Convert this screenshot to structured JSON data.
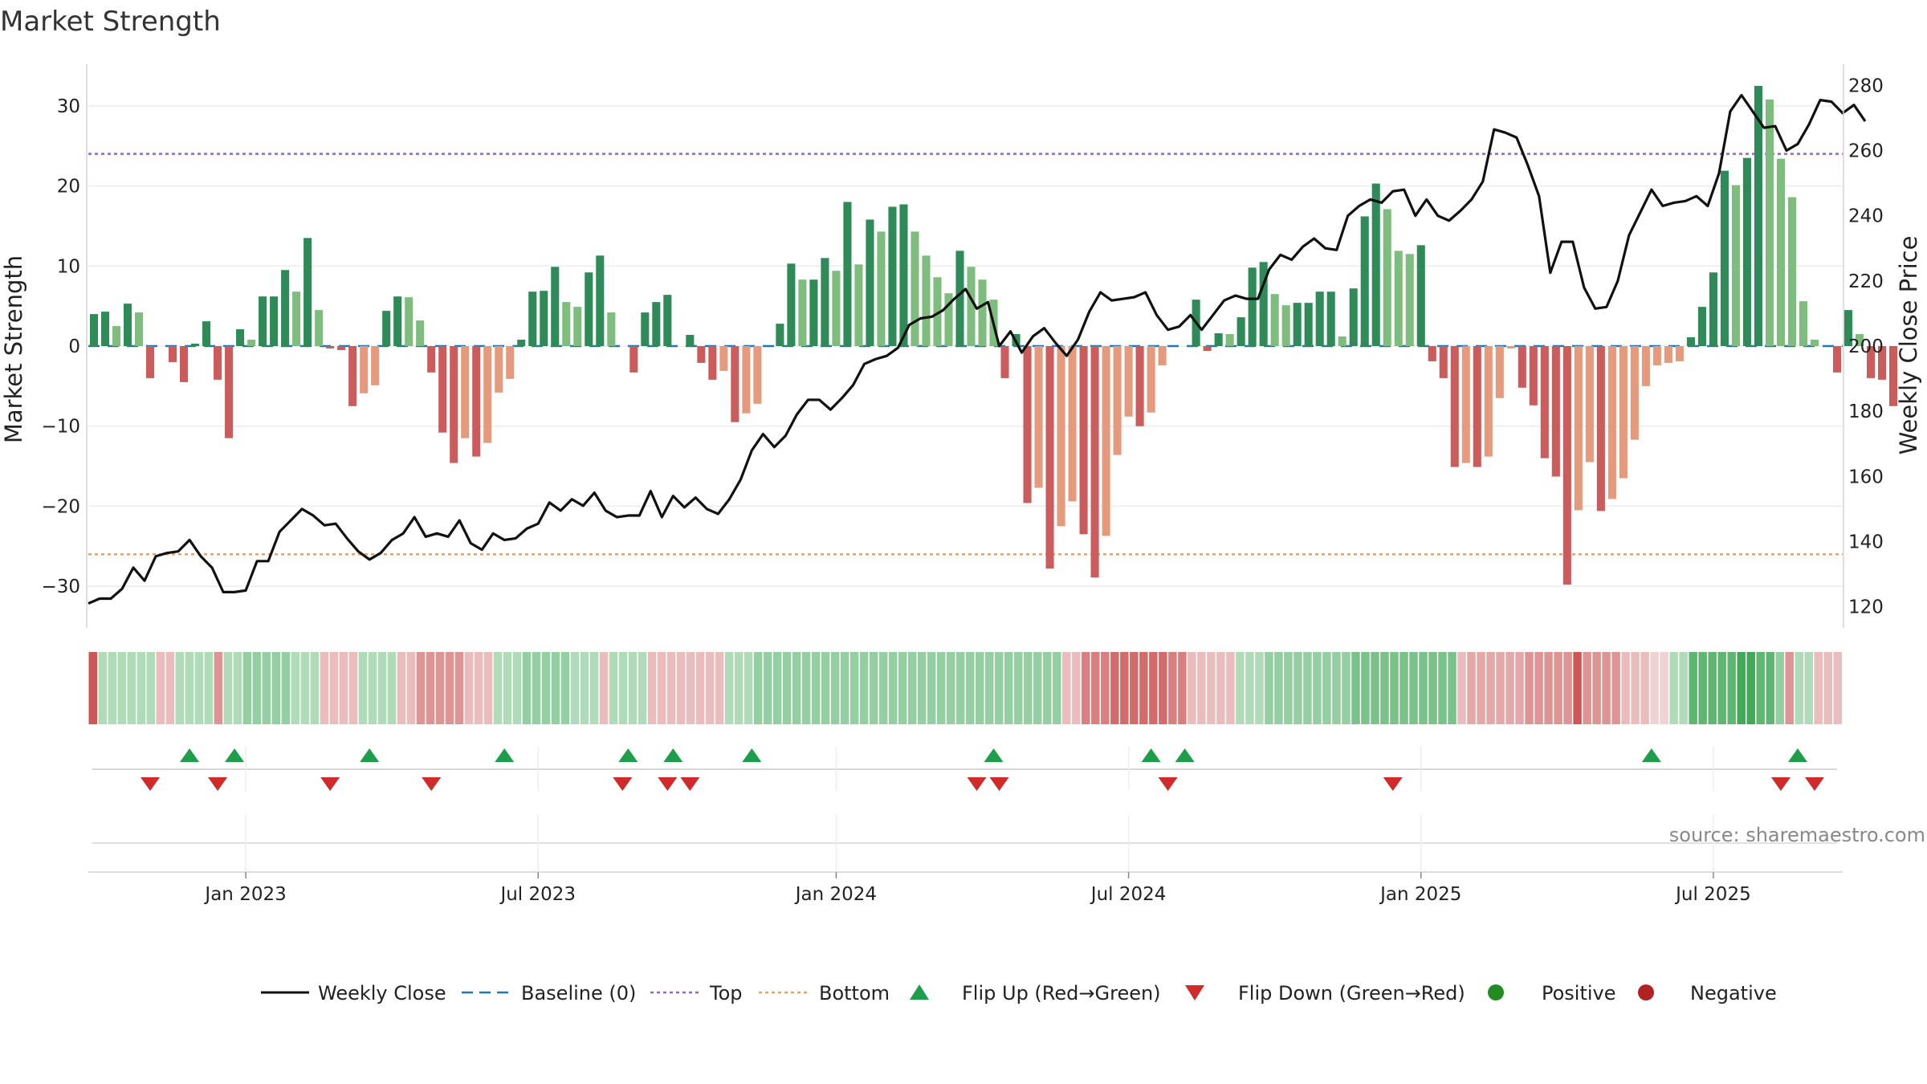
{
  "chart_data": {
    "type": "bar+line",
    "title": "Market Strength",
    "ylabel_left": "Market Strength",
    "ylabel_right": "Weekly Close Price",
    "ylim_left": [
      -35,
      35
    ],
    "ylim_right": [
      114,
      286
    ],
    "yticks_left": [
      30,
      20,
      10,
      0,
      -10,
      -20,
      -30
    ],
    "ytick_labels_left": [
      "30",
      "20",
      "10",
      "0",
      "−10",
      "−20",
      "−30"
    ],
    "yticks_right": [
      280,
      260,
      240,
      220,
      200,
      180,
      160,
      140,
      120
    ],
    "ytick_labels_right": [
      "280",
      "260",
      "240",
      "220",
      "200",
      "180",
      "160",
      "140",
      "120"
    ],
    "xlim": [
      0,
      156
    ],
    "xticks": [
      {
        "x": 14,
        "label": "Jan 2023"
      },
      {
        "x": 40,
        "label": "Jul 2023"
      },
      {
        "x": 66.5,
        "label": "Jan 2024"
      },
      {
        "x": 92.5,
        "label": "Jul 2024"
      },
      {
        "x": 118.5,
        "label": "Jan 2025"
      },
      {
        "x": 144.5,
        "label": "Jul 2025"
      }
    ],
    "top_level": 24,
    "bottom_level": -26,
    "baseline": 0,
    "strength": [
      4,
      4.3,
      2.5,
      5.3,
      4.2,
      -4,
      0,
      -2,
      -4.5,
      0.3,
      3.1,
      -4.2,
      -11.5,
      2.1,
      0.8,
      6.2,
      6.2,
      9.5,
      6.8,
      13.5,
      4.5,
      -0.3,
      -0.5,
      -7.5,
      -5.9,
      -4.9,
      4.4,
      6.2,
      6.1,
      3.2,
      -3.3,
      -10.8,
      -14.6,
      -11.5,
      -13.8,
      -12.1,
      -5.8,
      -4.1,
      0.8,
      6.8,
      6.9,
      9.9,
      5.5,
      4.9,
      9.2,
      11.3,
      4.2,
      0,
      -3.3,
      4.2,
      5.5,
      6.4,
      0,
      1.4,
      -2.1,
      -4.2,
      -3.1,
      -9.5,
      -8.4,
      -7.2,
      0,
      2.8,
      10.3,
      8.3,
      8.3,
      11,
      9.4,
      18,
      10.2,
      15.8,
      14.3,
      17.4,
      17.7,
      14.3,
      11.3,
      8.6,
      6.6,
      11.9,
      9.9,
      8.3,
      5.8,
      -4,
      1.5,
      -19.6,
      -17.7,
      -27.8,
      -22.5,
      -19.4,
      -23.5,
      -28.9,
      -23.7,
      -13.6,
      -8.8,
      -10,
      -8.3,
      -2.4,
      0,
      0,
      5.8,
      -0.6,
      1.6,
      1.5,
      3.6,
      9.8,
      10.5,
      6.5,
      5.1,
      5.4,
      5.4,
      6.8,
      6.8,
      1.2,
      7.2,
      16.2,
      20.3,
      17.1,
      11.9,
      11.5,
      12.6,
      -1.9,
      -4,
      -15.1,
      -14.6,
      -15.1,
      -13.8,
      -6.5,
      -0.3,
      -5.2,
      -7.4,
      -14,
      -16.3,
      -29.8,
      -20.5,
      -14.5,
      -20.6,
      -19.1,
      -16.5,
      -11.7,
      -5,
      -2.4,
      -2.1,
      -1.9,
      1.1,
      4.9,
      9.2,
      21.9,
      20.1,
      23.5,
      32.5,
      30.8,
      23.4,
      18.6,
      5.6,
      0.8,
      0,
      -3.3,
      4.5,
      1.5,
      -4,
      -4.2,
      -7.5
    ],
    "close": [
      121,
      122.5,
      122.5,
      125.5,
      132,
      128,
      135.5,
      136.5,
      137,
      140.5,
      135.5,
      132,
      124.5,
      124.5,
      125,
      134,
      134,
      143,
      146.5,
      150,
      148,
      145,
      145.5,
      141,
      137,
      134.5,
      136.5,
      140.5,
      142.5,
      147.5,
      141.5,
      142.5,
      141.5,
      146.5,
      139.5,
      137.5,
      142.5,
      140.5,
      141,
      144,
      145.5,
      152,
      149.5,
      153,
      151,
      155,
      149.5,
      147.5,
      148,
      148,
      155.5,
      147.5,
      154,
      150.5,
      153.5,
      150,
      148.5,
      153,
      159,
      168,
      173,
      169,
      172.5,
      179,
      183.5,
      183.5,
      180.5,
      184,
      188,
      194.5,
      196,
      197,
      199.5,
      206.5,
      208.5,
      209,
      211,
      214.5,
      217.5,
      211.5,
      213.5,
      200,
      204.5,
      198,
      203,
      205.5,
      201,
      197,
      202,
      210.5,
      216.5,
      214,
      214.5,
      215,
      216.5,
      209.5,
      205,
      206,
      209.5,
      205,
      209.5,
      214,
      215.5,
      214.5,
      214.5,
      223.5,
      228,
      226.5,
      230.5,
      233,
      230,
      229.5,
      240,
      243,
      245,
      244,
      247.5,
      248,
      240,
      245,
      240,
      238.5,
      241.5,
      245,
      250.5,
      266.5,
      265.5,
      264,
      255.5,
      246,
      222.5,
      232,
      232,
      218,
      211.5,
      212,
      220,
      234,
      241,
      248,
      243,
      244,
      244.5,
      246,
      243,
      253,
      272,
      277,
      272,
      267,
      267.5,
      260,
      262,
      268,
      275.5,
      275,
      271.5,
      274,
      269
    ],
    "regime_bands": [
      -7,
      1,
      1,
      1,
      1,
      1,
      1,
      -2,
      -2,
      1,
      1,
      1,
      1,
      -4,
      1,
      1,
      2,
      2,
      2,
      2,
      2,
      1,
      1,
      1,
      -2,
      -2,
      -2,
      -2,
      1,
      1,
      1,
      1,
      -2,
      -2,
      -4,
      -4,
      -4,
      -4,
      -4,
      -2,
      -2,
      -2,
      1,
      1,
      1,
      2,
      2,
      2,
      2,
      2,
      1,
      1,
      1,
      -2,
      1,
      1,
      1,
      1,
      -2,
      -2,
      -2,
      -2,
      -2,
      -2,
      -2,
      -2,
      1,
      1,
      1,
      2,
      2,
      2,
      2,
      2,
      2,
      2,
      2,
      2,
      2,
      2,
      2,
      2,
      2,
      2,
      2,
      2,
      2,
      2,
      2,
      2,
      2,
      2,
      2,
      2,
      2,
      2,
      2,
      2,
      2,
      2,
      2,
      -2,
      -2,
      -5,
      -5,
      -5,
      -6,
      -6,
      -6,
      -6,
      -6,
      -6,
      -5,
      -5,
      -2,
      -2,
      -2,
      -2,
      -2,
      1,
      1,
      1,
      2,
      2,
      2,
      2,
      2,
      2,
      2,
      2,
      2,
      3,
      3,
      3,
      3,
      3,
      3,
      3,
      3,
      3,
      3,
      3,
      -2,
      -3,
      -3,
      -3,
      -3,
      -3,
      -3,
      -4,
      -4,
      -4,
      -4,
      -4,
      -7,
      -4,
      -4,
      -4,
      -4,
      -2,
      -2,
      -2,
      -1,
      -1,
      1,
      1,
      4,
      4,
      4,
      4,
      4,
      5,
      5,
      4,
      4,
      2,
      -4,
      1,
      1,
      -2,
      -2,
      -2
    ],
    "flip_up": [
      9,
      13,
      25,
      37,
      48,
      52,
      59,
      80.5,
      94.5,
      97.5,
      139,
      152
    ],
    "flip_down": [
      5.5,
      11.5,
      21.5,
      30.5,
      47.5,
      51.5,
      53.5,
      79,
      81,
      96,
      116,
      150.5,
      153.5
    ],
    "legend": [
      "Weekly Close",
      "Baseline (0)",
      "Top",
      "Bottom",
      "Flip Up (Red→Green)",
      "Flip Down (Green→Red)",
      "Positive",
      "Negative"
    ],
    "source_note": "source: sharemaestro.com",
    "colors": {
      "pos_dark": "#2e8b57",
      "pos_light": "#7ebd7e",
      "neg_dark": "#cc5c5c",
      "neg_light": "#e59a7d",
      "line": "#111111",
      "baseline": "#1f77b4",
      "top": "#9467bd",
      "bottom": "#f0a060",
      "flip_up": "#1e9e4a",
      "flip_down": "#d02a2a",
      "legend_pos": "#228b22",
      "legend_neg": "#b22222"
    }
  }
}
